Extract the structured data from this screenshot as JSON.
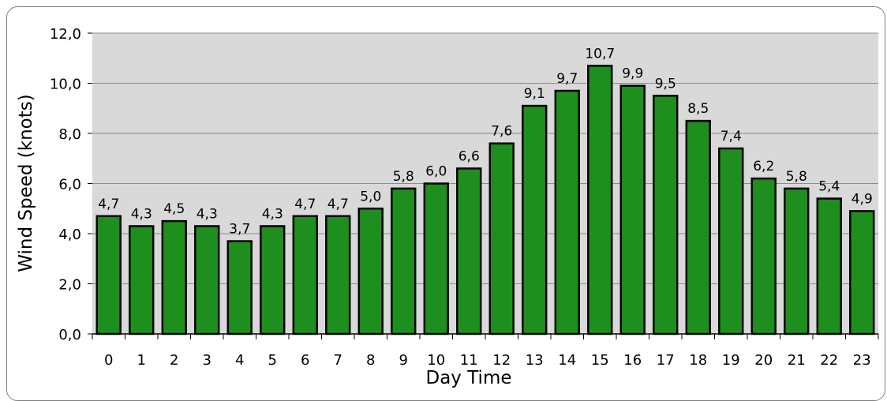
{
  "chart_data": {
    "type": "bar",
    "xlabel": "Day Time",
    "ylabel": "Wind Speed (knots)",
    "ylim": [
      0,
      12
    ],
    "yticks": [
      "0,0",
      "2,0",
      "4,0",
      "6,0",
      "8,0",
      "10,0",
      "12,0"
    ],
    "categories": [
      "0",
      "1",
      "2",
      "3",
      "4",
      "5",
      "6",
      "7",
      "8",
      "9",
      "10",
      "11",
      "12",
      "13",
      "14",
      "15",
      "16",
      "17",
      "18",
      "19",
      "20",
      "21",
      "22",
      "23"
    ],
    "values": [
      4.7,
      4.3,
      4.5,
      4.3,
      3.7,
      4.3,
      4.7,
      4.7,
      5.0,
      5.8,
      6.0,
      6.6,
      7.6,
      9.1,
      9.7,
      10.7,
      9.9,
      9.5,
      8.5,
      7.4,
      6.2,
      5.8,
      5.4,
      4.9
    ],
    "value_labels": [
      "4,7",
      "4,3",
      "4,5",
      "4,3",
      "3,7",
      "4,3",
      "4,7",
      "4,7",
      "5,0",
      "5,8",
      "6,0",
      "6,6",
      "7,6",
      "9,1",
      "9,7",
      "10,7",
      "9,9",
      "9,5",
      "8,5",
      "7,4",
      "6,2",
      "5,8",
      "5,4",
      "4,9"
    ],
    "grid": true,
    "legend": "none",
    "colors": {
      "bar": "#1e8f1e",
      "bar_edge": "#000000",
      "plot_bg": "#d9d9d9",
      "grid": "#8c8c8c"
    }
  }
}
